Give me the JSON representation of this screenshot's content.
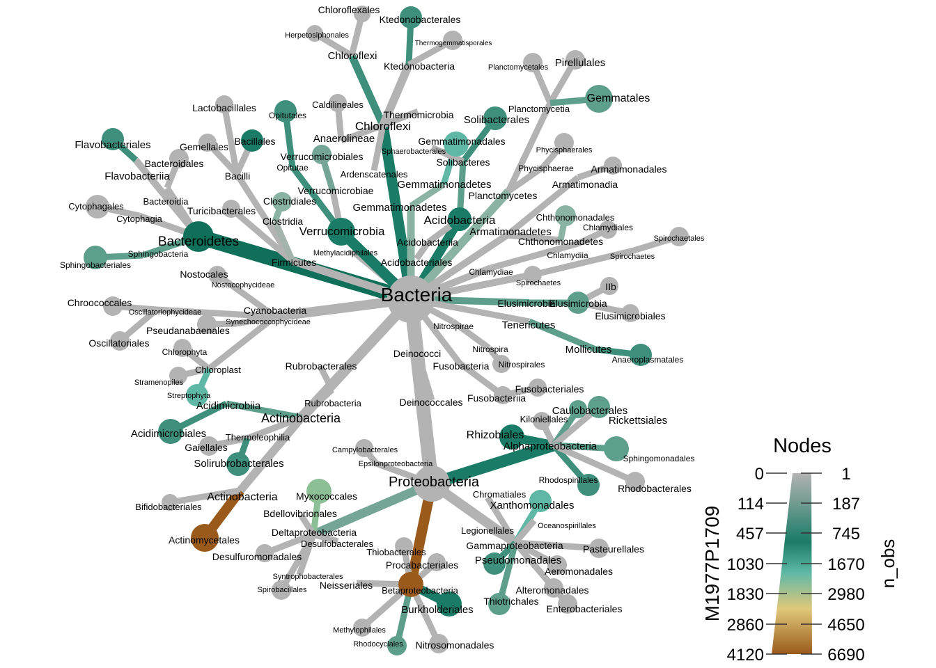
{
  "colors": {
    "gray": "#b3b3b3",
    "gt1": "#a5b3ad",
    "gt2": "#8ab3a4",
    "gt3": "#74a597",
    "mid": "#5e9e8c",
    "teal": "#3e8f7c",
    "dark": "#1a7c66",
    "darker": "#0f6f59",
    "light": "#5fb8a6",
    "pale": "#8dbf96",
    "brown": "#9a5a1c"
  },
  "graph": {
    "nodes": {
      "bacteria": "Bacteria",
      "bacteroidetes": "Bacteroidetes",
      "flavobacteriia": "Flavobacteriia",
      "flavobacteriales": "Flavobacteriales",
      "bacteroidia": "Bacteroidia",
      "bacteroidales": "Bacteroidales",
      "cytophagia": "Cytophagia",
      "cytophagales": "Cytophagales",
      "sphingobacteriia": "Sphingobacteria",
      "sphingobacteriales": "Sphingobacteriales",
      "firmicutes": "Firmicutes",
      "bacilli": "Bacilli",
      "lactobacillales": "Lactobacillales",
      "bacillales": "Bacillales",
      "gemellales": "Gemellales",
      "turicibacterales": "Turicibacterales",
      "clostridia": "Clostridia",
      "clostridiales": "Clostridiales",
      "methylacidiphilales": "Methylacidiphilales",
      "verrucomicrobia": "Verrucomicrobia",
      "verrucomicrobiae": "Verrucomicrobiae",
      "verrucomicrobiales": "Verrucomicrobiales",
      "opitutae": "Opitutae",
      "opitutales": "Opitutales",
      "chloroflexi": "Chloroflexi",
      "chloroflexi_c": "Chloroflexi",
      "chloroflexales": "Chloroflexales",
      "herpetosiphonales": "Herpetosiphonales",
      "ktedonobacteria": "Ktedonobacteria",
      "ktedonobacterales": "Ktedonobacterales",
      "thermogemmatisporales": "Thermogemmatisporales",
      "anaerolineae": "Anaerolineae",
      "caldilineales": "Caldilineales",
      "thermomicrobia": "Thermomicrobia",
      "ardenscatenales": "Ardenscatenales",
      "gemmatimonadetes": "Gemmatimonadetes",
      "gemmatimonadetes_c": "Gemmatimonadetes",
      "gemmatimonadales": "Gemmatimonadales",
      "solibacteres": "Solibacteres",
      "solibacterales": "Solibacterales",
      "sphaerobacterales": "Sphaerobacterales",
      "acidobacteria": "Acidobacteria",
      "acidobacteriia": "Acidobacteriia",
      "acidobacteriales": "Acidobacteriales",
      "planctomycetes": "Planctomycetes",
      "planctomycetia": "Planctomycetia",
      "planctomycetales": "Planctomycetales",
      "pirellulales": "Pirellulales",
      "gemmatales": "Gemmatales",
      "phycisphaerae": "Phycisphaerae",
      "phycisphaerales": "Phycisphaerales",
      "armatimonadetes": "Armatimonadetes",
      "armatimonadia": "Armatimonadia",
      "armatimonadales": "Armatimonadales",
      "chthonomonadetes": "Chthonomonadetes",
      "chthonomonadales": "Chthonomonadales",
      "chlamydiae": "Chlamydiae",
      "chlamydiia": "Chlamydiia",
      "chlamydiales": "Chlamydiales",
      "spirochaetes": "Spirochaetes",
      "spirochaetes_c": "Spirochaetes",
      "spirochaetales": "Spirochaetales",
      "elusimicrobia": "Elusimicrobia",
      "elusimicrobia_c": "Elusimicrobia",
      "elusimicrobiales": "Elusimicrobiales",
      "iib": "IIb",
      "tenericutes": "Tenericutes",
      "mollicutes": "Mollicutes",
      "anaeroplasmatales": "Anaeroplasmatales",
      "nitrospirae": "Nitrospirae",
      "nitrospira": "Nitrospira",
      "nitrospirales": "Nitrospirales",
      "fusobacteria": "Fusobacteria",
      "fusobacteriia": "Fusobacteriia",
      "fusobacteriales": "Fusobacteriales",
      "deinococci": "Deinococci",
      "deinococcales": "Deinococcales",
      "cyanobacteria": "Cyanobacteria",
      "nostocophycideae": "Nostocophycideae",
      "nostocales": "Nostocales",
      "oscillatoriophycideae": "Oscillatoriophycideae",
      "chroococcales": "Chroococcales",
      "oscillatoriales": "Oscillatoriales",
      "synechococcophycideae": "Synechococcophycideae",
      "pseudanabaenales": "Pseudanabaenales",
      "chloroplast": "Chloroplast",
      "chlorophyta": "Chlorophyta",
      "stramenopiles": "Stramenopiles",
      "streptophyta": "Streptophyta",
      "actinobacteria": "Actinobacteria",
      "actinobacteria_c": "Actinobacteria",
      "actinomycetales": "Actinomycetales",
      "bifidobacteriales": "Bifidobacteriales",
      "rubrobacteria": "Rubrobacteria",
      "rubrobacterales": "Rubrobacterales",
      "acidimicrobiia": "Acidimicrobiia",
      "acidimicrobiales": "Acidimicrobiales",
      "thermoleophilia": "Thermoleophilia",
      "gaiellales": "Gaiellales",
      "solirubrobacterales": "Solirubrobacterales",
      "proteobacteria": "Proteobacteria",
      "alphaproteobacteria": "Alphaproteobacteria",
      "rhizobiales": "Rhizobiales",
      "kiloniellales": "Kiloniellales",
      "caulobacterales": "Caulobacterales",
      "rickettsiales": "Rickettsiales",
      "sphingomonadales": "Sphingomonadales",
      "rhodospirillales": "Rhodospirillales",
      "rhodobacterales": "Rhodobacterales",
      "gammaproteobacteria": "Gammaproteobacteria",
      "chromatiales": "Chromatiales",
      "xanthomonadales": "Xanthomonadales",
      "oceanospirillales": "Oceanospirillales",
      "legionellales": "Legionellales",
      "pasteurellales": "Pasteurellales",
      "pseudomonadales": "Pseudomonadales",
      "aeromonadales": "Aeromonadales",
      "alteromonadales": "Alteromonadales",
      "thiotrichales": "Thiotrichales",
      "enterobacteriales": "Enterobacteriales",
      "betaproteobacteria": "Betaproteobacteria",
      "burkholderiales": "Burkholderiales",
      "neisseriales": "Neisseriales",
      "thiobacterales": "Thiobacterales",
      "procabacteriales": "Procabacteriales",
      "methylophilales": "Methylophilales",
      "rhodocyclales": "Rhodocyclales",
      "nitrosomonadales": "Nitrosomonadales",
      "deltaproteobacteria": "Deltaproteobacteria",
      "myxococcales": "Myxococcales",
      "bdellovibrionales": "Bdellovibrionales",
      "desulfobacterales": "Desulfobacterales",
      "desulfuromonadales": "Desulfuromonadales",
      "syntrophobacterales": "Syntrophobacterales",
      "spirobacillales": "Spirobacillales",
      "epsilonproteobacteria": "Epsilonproteobacteria",
      "campylobacterales": "Campylobacterales"
    },
    "edges": [
      [
        "bacteria",
        "bacteroidetes",
        "darker"
      ],
      [
        "bacteroidetes",
        "flavobacteriia",
        "gray"
      ],
      [
        "flavobacteriia",
        "flavobacteriales",
        "teal"
      ],
      [
        "bacteroidetes",
        "bacteroidia",
        "gray"
      ],
      [
        "bacteroidia",
        "bacteroidales",
        "gray"
      ],
      [
        "bacteroidetes",
        "cytophagia",
        "gray"
      ],
      [
        "cytophagia",
        "cytophagales",
        "gray"
      ],
      [
        "bacteroidetes",
        "sphingobacteriia",
        "mid"
      ],
      [
        "sphingobacteriia",
        "sphingobacteriales",
        "mid"
      ],
      [
        "bacteria",
        "firmicutes",
        "gray"
      ],
      [
        "firmicutes",
        "bacilli",
        "gray"
      ],
      [
        "bacilli",
        "lactobacillales",
        "gray"
      ],
      [
        "bacilli",
        "bacillales",
        "gray"
      ],
      [
        "bacilli",
        "gemellales",
        "gray"
      ],
      [
        "firmicutes",
        "turicibacterales",
        "gray"
      ],
      [
        "firmicutes",
        "clostridia",
        "gt1"
      ],
      [
        "clostridia",
        "clostridiales",
        "gt2"
      ],
      [
        "bacteria",
        "methylacidiphilales",
        "gray"
      ],
      [
        "bacteria",
        "verrucomicrobia",
        "dark"
      ],
      [
        "verrucomicrobia",
        "verrucomicrobiae",
        "gray"
      ],
      [
        "verrucomicrobiae",
        "verrucomicrobiales",
        "gt3"
      ],
      [
        "verrucomicrobia",
        "opitutae",
        "teal"
      ],
      [
        "opitutae",
        "opitutales",
        "teal"
      ],
      [
        "bacteria",
        "chloroflexi",
        "dark"
      ],
      [
        "chloroflexi",
        "chloroflexi_c",
        "teal"
      ],
      [
        "chloroflexi_c",
        "chloroflexales",
        "gray"
      ],
      [
        "chloroflexi_c",
        "herpetosiphonales",
        "gray"
      ],
      [
        "chloroflexi",
        "ktedonobacteria",
        "gray"
      ],
      [
        "ktedonobacteria",
        "ktedonobacterales",
        "teal"
      ],
      [
        "ktedonobacteria",
        "thermogemmatisporales",
        "gray"
      ],
      [
        "chloroflexi",
        "anaerolineae",
        "gray"
      ],
      [
        "anaerolineae",
        "caldilineales",
        "gray"
      ],
      [
        "chloroflexi",
        "thermomicrobia",
        "gray"
      ],
      [
        "chloroflexi",
        "ardenscatenales",
        "gray"
      ],
      [
        "bacteria",
        "gemmatimonadetes",
        "gt2"
      ],
      [
        "gemmatimonadetes",
        "gemmatimonadetes_c",
        "gt2"
      ],
      [
        "gemmatimonadetes_c",
        "gemmatimonadales",
        "light"
      ],
      [
        "bacteria",
        "acidobacteria",
        "dark"
      ],
      [
        "acidobacteria",
        "solibacteres",
        "mid"
      ],
      [
        "solibacteres",
        "solibacterales",
        "teal"
      ],
      [
        "solibacteres",
        "sphaerobacterales",
        "gray"
      ],
      [
        "acidobacteria",
        "acidobacteriia",
        "gray"
      ],
      [
        "acidobacteriia",
        "acidobacteriales",
        "gray"
      ],
      [
        "bacteria",
        "planctomycetes",
        "gt2"
      ],
      [
        "planctomycetes",
        "planctomycetia",
        "gray"
      ],
      [
        "planctomycetia",
        "planctomycetales",
        "gray"
      ],
      [
        "planctomycetia",
        "pirellulales",
        "gray"
      ],
      [
        "planctomycetia",
        "gemmatales",
        "mid"
      ],
      [
        "planctomycetes",
        "phycisphaerae",
        "gray"
      ],
      [
        "phycisphaerae",
        "phycisphaerales",
        "gray"
      ],
      [
        "bacteria",
        "armatimonadetes",
        "gray"
      ],
      [
        "armatimonadetes",
        "armatimonadia",
        "gray"
      ],
      [
        "armatimonadia",
        "armatimonadales",
        "gray"
      ],
      [
        "armatimonadetes",
        "chthonomonadetes",
        "gray"
      ],
      [
        "chthonomonadetes",
        "chthonomonadales",
        "gt2"
      ],
      [
        "bacteria",
        "chlamydiae",
        "gray"
      ],
      [
        "chlamydiae",
        "chlamydiia",
        "gray"
      ],
      [
        "chlamydiia",
        "chlamydiales",
        "gray"
      ],
      [
        "bacteria",
        "spirochaetes",
        "gray"
      ],
      [
        "spirochaetes",
        "spirochaetes_c",
        "gray"
      ],
      [
        "spirochaetes_c",
        "spirochaetales",
        "gray"
      ],
      [
        "bacteria",
        "elusimicrobia",
        "mid"
      ],
      [
        "elusimicrobia",
        "elusimicrobia_c",
        "mid"
      ],
      [
        "elusimicrobia_c",
        "elusimicrobiales",
        "gray"
      ],
      [
        "elusimicrobia_c",
        "iib",
        "gray"
      ],
      [
        "bacteria",
        "tenericutes",
        "gray"
      ],
      [
        "tenericutes",
        "mollicutes",
        "mid"
      ],
      [
        "mollicutes",
        "anaeroplasmatales",
        "teal"
      ],
      [
        "bacteria",
        "nitrospirae",
        "gray"
      ],
      [
        "nitrospirae",
        "nitrospira",
        "gray"
      ],
      [
        "nitrospira",
        "nitrospirales",
        "gray"
      ],
      [
        "bacteria",
        "fusobacteria",
        "gray"
      ],
      [
        "fusobacteria",
        "fusobacteriia",
        "gray"
      ],
      [
        "fusobacteriia",
        "fusobacteriales",
        "gray"
      ],
      [
        "bacteria",
        "deinococci",
        "gray"
      ],
      [
        "deinococci",
        "deinococcales",
        "gray"
      ],
      [
        "bacteria",
        "cyanobacteria",
        "gray"
      ],
      [
        "cyanobacteria",
        "nostocophycideae",
        "gray"
      ],
      [
        "nostocophycideae",
        "nostocales",
        "gray"
      ],
      [
        "cyanobacteria",
        "oscillatoriophycideae",
        "gray"
      ],
      [
        "oscillatoriophycideae",
        "chroococcales",
        "gray"
      ],
      [
        "oscillatoriophycideae",
        "oscillatoriales",
        "gray"
      ],
      [
        "cyanobacteria",
        "synechococcophycideae",
        "gray"
      ],
      [
        "synechococcophycideae",
        "pseudanabaenales",
        "gray"
      ],
      [
        "cyanobacteria",
        "chloroplast",
        "gray"
      ],
      [
        "chloroplast",
        "chlorophyta",
        "gray"
      ],
      [
        "chloroplast",
        "stramenopiles",
        "gray"
      ],
      [
        "chloroplast",
        "streptophyta",
        "light"
      ],
      [
        "bacteria",
        "actinobacteria",
        "gray"
      ],
      [
        "actinobacteria",
        "actinobacteria_c",
        "gray"
      ],
      [
        "actinobacteria_c",
        "actinomycetales",
        "brown"
      ],
      [
        "actinobacteria_c",
        "bifidobacteriales",
        "gray"
      ],
      [
        "actinobacteria",
        "rubrobacteria",
        "gray"
      ],
      [
        "rubrobacteria",
        "rubrobacterales",
        "gray"
      ],
      [
        "actinobacteria",
        "acidimicrobiia",
        "mid"
      ],
      [
        "acidimicrobiia",
        "acidimicrobiales",
        "teal"
      ],
      [
        "actinobacteria",
        "thermoleophilia",
        "gray"
      ],
      [
        "thermoleophilia",
        "gaiellales",
        "gray"
      ],
      [
        "thermoleophilia",
        "solirubrobacterales",
        "teal"
      ],
      [
        "bacteria",
        "proteobacteria",
        "gray"
      ],
      [
        "proteobacteria",
        "alphaproteobacteria",
        "dark"
      ],
      [
        "alphaproteobacteria",
        "rhizobiales",
        "dark"
      ],
      [
        "alphaproteobacteria",
        "kiloniellales",
        "gray"
      ],
      [
        "alphaproteobacteria",
        "caulobacterales",
        "mid"
      ],
      [
        "alphaproteobacteria",
        "rickettsiales",
        "gray"
      ],
      [
        "alphaproteobacteria",
        "sphingomonadales",
        "mid"
      ],
      [
        "alphaproteobacteria",
        "rhodospirillales",
        "teal"
      ],
      [
        "alphaproteobacteria",
        "rhodobacterales",
        "gray"
      ],
      [
        "proteobacteria",
        "gammaproteobacteria",
        "gray"
      ],
      [
        "gammaproteobacteria",
        "chromatiales",
        "gray"
      ],
      [
        "gammaproteobacteria",
        "xanthomonadales",
        "light"
      ],
      [
        "gammaproteobacteria",
        "oceanospirillales",
        "gray"
      ],
      [
        "gammaproteobacteria",
        "legionellales",
        "gray"
      ],
      [
        "gammaproteobacteria",
        "pasteurellales",
        "gray"
      ],
      [
        "gammaproteobacteria",
        "pseudomonadales",
        "teal"
      ],
      [
        "gammaproteobacteria",
        "aeromonadales",
        "gray"
      ],
      [
        "gammaproteobacteria",
        "alteromonadales",
        "gray"
      ],
      [
        "gammaproteobacteria",
        "thiotrichales",
        "mid"
      ],
      [
        "gammaproteobacteria",
        "enterobacteriales",
        "gray"
      ],
      [
        "proteobacteria",
        "betaproteobacteria",
        "brown"
      ],
      [
        "betaproteobacteria",
        "burkholderiales",
        "dark"
      ],
      [
        "betaproteobacteria",
        "neisseriales",
        "gray"
      ],
      [
        "betaproteobacteria",
        "thiobacterales",
        "gray"
      ],
      [
        "betaproteobacteria",
        "procabacteriales",
        "gray"
      ],
      [
        "betaproteobacteria",
        "methylophilales",
        "gray"
      ],
      [
        "betaproteobacteria",
        "rhodocyclales",
        "mid"
      ],
      [
        "betaproteobacteria",
        "nitrosomonadales",
        "gray"
      ],
      [
        "proteobacteria",
        "deltaproteobacteria",
        "gt3"
      ],
      [
        "deltaproteobacteria",
        "myxococcales",
        "pale"
      ],
      [
        "deltaproteobacteria",
        "bdellovibrionales",
        "gray"
      ],
      [
        "deltaproteobacteria",
        "desulfobacterales",
        "gray"
      ],
      [
        "deltaproteobacteria",
        "desulfuromonadales",
        "gray"
      ],
      [
        "deltaproteobacteria",
        "syntrophobacterales",
        "gray"
      ],
      [
        "deltaproteobacteria",
        "spirobacillales",
        "gray"
      ],
      [
        "proteobacteria",
        "epsilonproteobacteria",
        "gray"
      ],
      [
        "epsilonproteobacteria",
        "campylobacterales",
        "gray"
      ]
    ]
  },
  "legend": {
    "title": "Nodes",
    "left_axis_label": "M1977P1709",
    "right_axis_label": "n_obs",
    "left_ticks": [
      "0",
      "114",
      "457",
      "1030",
      "1830",
      "2860",
      "4120"
    ],
    "right_ticks": [
      "1",
      "187",
      "745",
      "1670",
      "2980",
      "4650",
      "6690"
    ],
    "gradient": [
      "#b3b3b3",
      "#1a7c66",
      "#5fb8a6",
      "#e0c87a",
      "#9a5a1c"
    ]
  }
}
